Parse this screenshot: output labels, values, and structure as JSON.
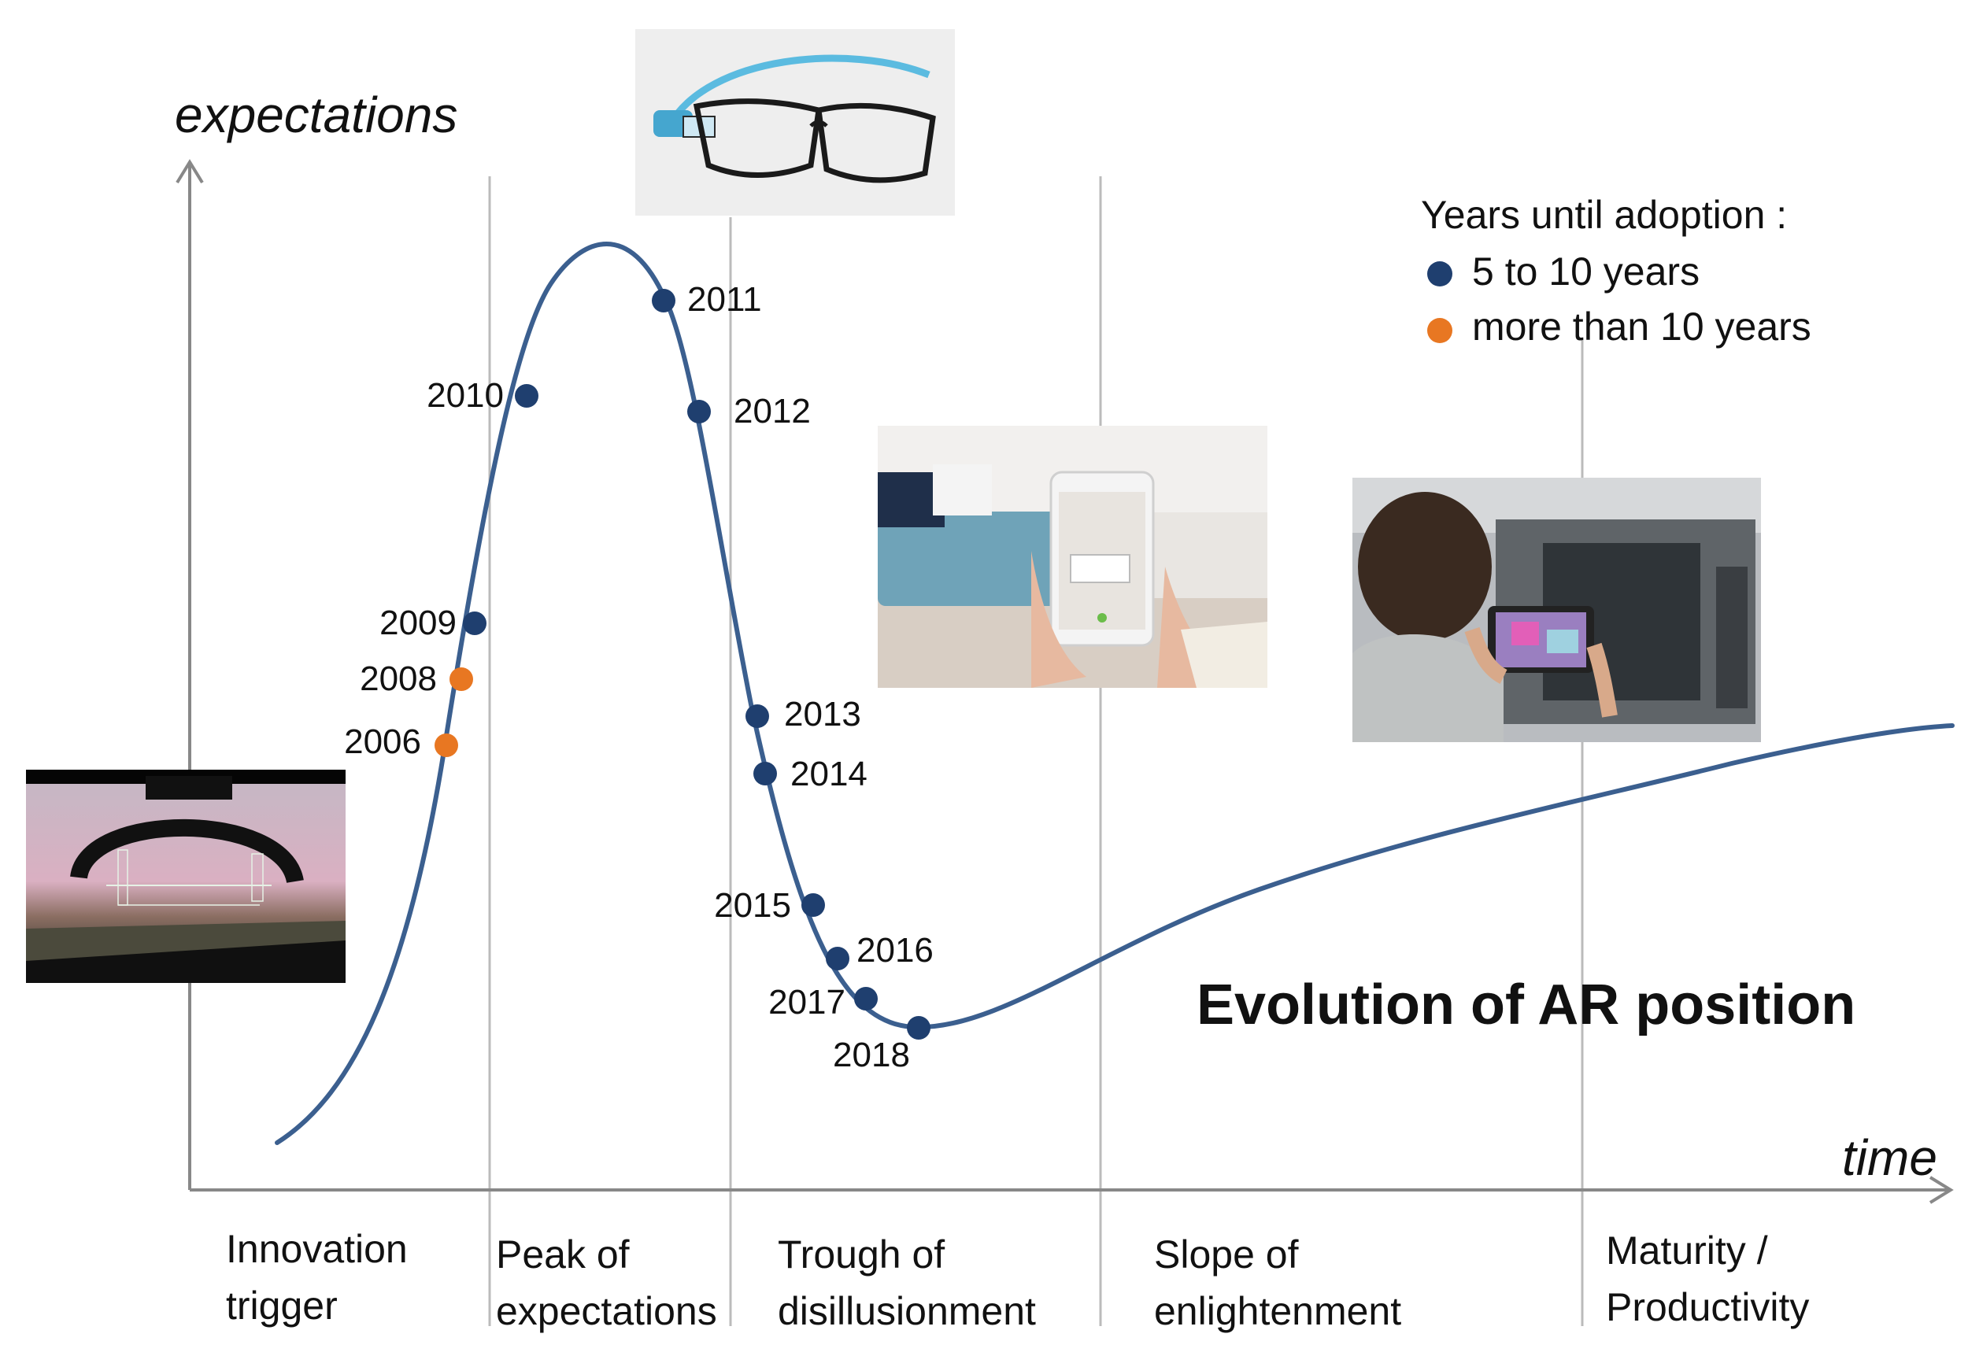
{
  "y_axis_label": "expectations",
  "x_axis_label": "time",
  "title": "Evolution of AR position",
  "legend": {
    "title": "Years until adoption :",
    "items": [
      {
        "label": "5 to 10 years",
        "color": "#1f3f6f"
      },
      {
        "label": "more than 10 years",
        "color": "#e87722"
      }
    ]
  },
  "phases": [
    {
      "line1": "Innovation",
      "line2": "trigger"
    },
    {
      "line1": "Peak of",
      "line2": "expectations"
    },
    {
      "line1": "Trough of",
      "line2": "disillusionment"
    },
    {
      "line1": "Slope of",
      "line2": "enlightenment"
    },
    {
      "line1": "Maturity /",
      "line2": "Productivity"
    }
  ],
  "points": [
    {
      "year": "2006",
      "group": "more than 10 years"
    },
    {
      "year": "2008",
      "group": "more than 10 years"
    },
    {
      "year": "2009",
      "group": "5 to 10 years"
    },
    {
      "year": "2010",
      "group": "5 to 10 years"
    },
    {
      "year": "2011",
      "group": "5 to 10 years"
    },
    {
      "year": "2012",
      "group": "5 to 10 years"
    },
    {
      "year": "2013",
      "group": "5 to 10 years"
    },
    {
      "year": "2014",
      "group": "5 to 10 years"
    },
    {
      "year": "2015",
      "group": "5 to 10 years"
    },
    {
      "year": "2016",
      "group": "5 to 10 years"
    },
    {
      "year": "2017",
      "group": "5 to 10 years"
    },
    {
      "year": "2018",
      "group": "5 to 10 years"
    }
  ],
  "photos": [
    {
      "subject": "cockpit head-up display",
      "icon": "hud-photo"
    },
    {
      "subject": "smart glasses",
      "icon": "smart-glasses-photo"
    },
    {
      "subject": "AR furniture app on smartphone",
      "icon": "phone-ar-photo"
    },
    {
      "subject": "AR tablet at industrial machine",
      "icon": "tablet-machine-photo"
    }
  ],
  "colors": {
    "curve": "#3b5f8f",
    "blue_dot": "#1f3f6f",
    "orange_dot": "#e87722",
    "axis": "#888888",
    "divider": "#bbbbbb"
  }
}
